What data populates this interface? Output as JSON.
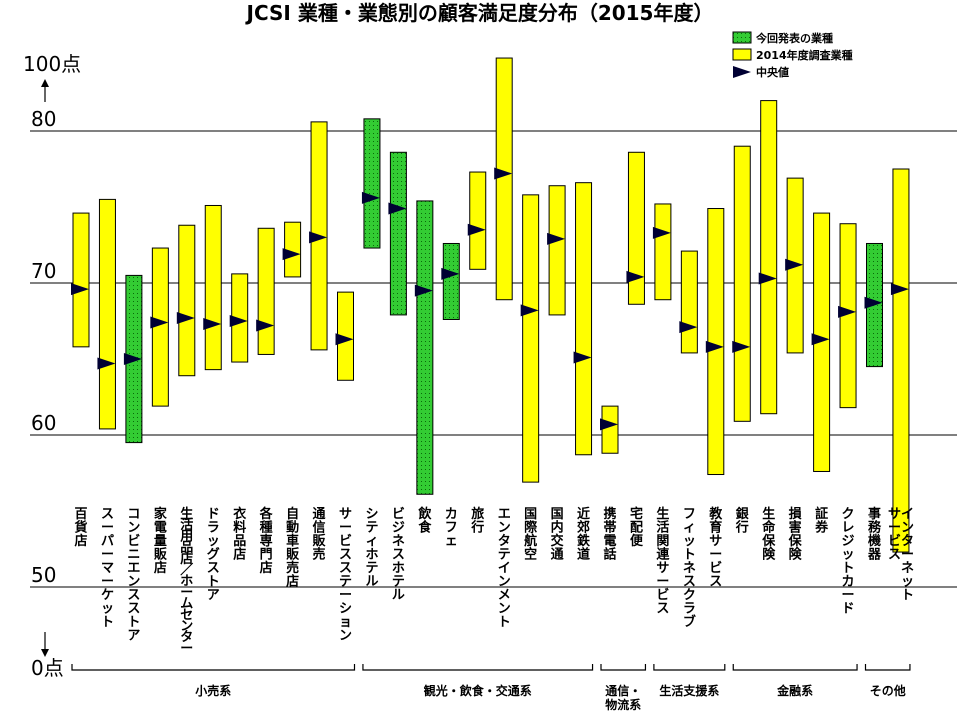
{
  "chart_data": {
    "type": "range-bar",
    "title": "JCSI 業種・業態別の顧客満足度分布（2015年度）",
    "y_top_label": "100点",
    "y_bottom_label": "0点",
    "y_ticks": [
      {
        "value": 80,
        "label": "80"
      },
      {
        "value": 70,
        "label": "70"
      },
      {
        "value": 60,
        "label": "60"
      },
      {
        "value": 50,
        "label": "50"
      }
    ],
    "ylim": [
      50,
      85
    ],
    "grid": true,
    "legend_position": "top-right",
    "legend": [
      {
        "label": "今回発表の業種",
        "kind": "new",
        "color": "#33cc33"
      },
      {
        "label": "2014年度調査業種",
        "kind": "prior",
        "color": "#ffff00"
      },
      {
        "label": "中央値",
        "kind": "median",
        "color": "#000033"
      }
    ],
    "series": [
      {
        "name": "百貨店",
        "lines": [
          "百貨店"
        ],
        "min": 65.8,
        "max": 74.6,
        "median": 69.6,
        "kind": "prior"
      },
      {
        "name": "スーパーマーケット",
        "lines": [
          "スーパーマーケット"
        ],
        "min": 60.4,
        "max": 75.5,
        "median": 64.7,
        "kind": "prior"
      },
      {
        "name": "コンビニエンスストア",
        "lines": [
          "コンビニエンスストア"
        ],
        "min": 59.5,
        "max": 70.5,
        "median": 65.0,
        "kind": "new"
      },
      {
        "name": "家電量販店",
        "lines": [
          "家電量販店"
        ],
        "min": 61.9,
        "max": 72.3,
        "median": 67.4,
        "kind": "prior"
      },
      {
        "name": "生活用品店／ホームセンター",
        "lines": [
          "生活用品店／ホームセンター"
        ],
        "min": 63.9,
        "max": 73.8,
        "median": 67.7,
        "kind": "prior",
        "small": true
      },
      {
        "name": "ドラッグストア",
        "lines": [
          "ドラッグストア"
        ],
        "min": 64.3,
        "max": 75.1,
        "median": 67.3,
        "kind": "prior"
      },
      {
        "name": "衣料品店",
        "lines": [
          "衣料品店"
        ],
        "min": 64.8,
        "max": 70.6,
        "median": 67.5,
        "kind": "prior"
      },
      {
        "name": "各種専門店",
        "lines": [
          "各種専門店"
        ],
        "min": 65.3,
        "max": 73.6,
        "median": 67.2,
        "kind": "prior"
      },
      {
        "name": "自動車販売店",
        "lines": [
          "自動車販売店"
        ],
        "min": 70.4,
        "max": 74.0,
        "median": 71.9,
        "kind": "prior"
      },
      {
        "name": "通信販売",
        "lines": [
          "通信販売"
        ],
        "min": 65.6,
        "max": 80.6,
        "median": 73.0,
        "kind": "prior"
      },
      {
        "name": "サービスステーション",
        "lines": [
          "サービスステーション"
        ],
        "min": 63.6,
        "max": 69.4,
        "median": 66.3,
        "kind": "prior"
      },
      {
        "name": "シティホテル",
        "lines": [
          "シティホテル"
        ],
        "min": 72.3,
        "max": 80.8,
        "median": 75.6,
        "kind": "new"
      },
      {
        "name": "ビジネスホテル",
        "lines": [
          "ビジネスホテル"
        ],
        "min": 67.9,
        "max": 78.6,
        "median": 74.9,
        "kind": "new"
      },
      {
        "name": "飲食",
        "lines": [
          "飲食"
        ],
        "min": 56.1,
        "max": 75.4,
        "median": 69.5,
        "kind": "new"
      },
      {
        "name": "カフェ",
        "lines": [
          "カフェ"
        ],
        "min": 67.6,
        "max": 72.6,
        "median": 70.6,
        "kind": "new"
      },
      {
        "name": "旅行",
        "lines": [
          "旅行"
        ],
        "min": 70.9,
        "max": 77.3,
        "median": 73.5,
        "kind": "prior"
      },
      {
        "name": "エンタテインメント",
        "lines": [
          "エンタテインメント"
        ],
        "min": 68.9,
        "max": 84.8,
        "median": 77.2,
        "kind": "prior"
      },
      {
        "name": "国際航空",
        "lines": [
          "国際航空"
        ],
        "min": 56.9,
        "max": 75.8,
        "median": 68.2,
        "kind": "prior"
      },
      {
        "name": "国内交通",
        "lines": [
          "国内交通"
        ],
        "min": 67.9,
        "max": 76.4,
        "median": 72.9,
        "kind": "prior"
      },
      {
        "name": "近郊鉄道",
        "lines": [
          "近郊鉄道"
        ],
        "min": 58.7,
        "max": 76.6,
        "median": 65.1,
        "kind": "prior"
      },
      {
        "name": "携帯電話",
        "lines": [
          "携帯電話"
        ],
        "min": 58.8,
        "max": 61.9,
        "median": 60.7,
        "kind": "prior"
      },
      {
        "name": "宅配便",
        "lines": [
          "宅配便"
        ],
        "min": 68.6,
        "max": 78.6,
        "median": 70.4,
        "kind": "prior"
      },
      {
        "name": "生活関連サービス",
        "lines": [
          "生活関連サービス"
        ],
        "min": 68.9,
        "max": 75.2,
        "median": 73.3,
        "kind": "prior"
      },
      {
        "name": "フィットネスクラブ",
        "lines": [
          "フィットネスクラブ"
        ],
        "min": 65.4,
        "max": 72.1,
        "median": 67.1,
        "kind": "prior"
      },
      {
        "name": "教育サービス",
        "lines": [
          "教育サービス"
        ],
        "min": 57.4,
        "max": 74.9,
        "median": 65.8,
        "kind": "prior"
      },
      {
        "name": "銀行",
        "lines": [
          "銀行"
        ],
        "min": 60.9,
        "max": 79.0,
        "median": 65.8,
        "kind": "prior"
      },
      {
        "name": "生命保険",
        "lines": [
          "生命保険"
        ],
        "min": 61.4,
        "max": 82.0,
        "median": 70.3,
        "kind": "prior"
      },
      {
        "name": "損害保険",
        "lines": [
          "損害保険"
        ],
        "min": 65.4,
        "max": 76.9,
        "median": 71.2,
        "kind": "prior"
      },
      {
        "name": "証券",
        "lines": [
          "証券"
        ],
        "min": 57.6,
        "max": 74.6,
        "median": 66.3,
        "kind": "prior"
      },
      {
        "name": "クレジットカード",
        "lines": [
          "クレジットカード"
        ],
        "min": 61.8,
        "max": 73.9,
        "median": 68.1,
        "kind": "prior"
      },
      {
        "name": "事務機器",
        "lines": [
          "事務機器"
        ],
        "min": 64.5,
        "max": 72.6,
        "median": 68.7,
        "kind": "new"
      },
      {
        "name": "インターネットサービス",
        "lines": [
          "インターネット",
          "サービス"
        ],
        "min": 52.3,
        "max": 77.5,
        "median": 69.6,
        "kind": "prior"
      }
    ],
    "groups": [
      {
        "lines": [
          "小売系"
        ],
        "from": 0,
        "to": 10
      },
      {
        "lines": [
          "観光・飲食・交通系"
        ],
        "from": 11,
        "to": 19
      },
      {
        "lines": [
          "通信・",
          "物流系"
        ],
        "from": 20,
        "to": 21
      },
      {
        "lines": [
          "生活支援系"
        ],
        "from": 22,
        "to": 24
      },
      {
        "lines": [
          "金融系"
        ],
        "from": 25,
        "to": 29
      },
      {
        "lines": [
          "その他"
        ],
        "from": 30,
        "to": 31
      }
    ]
  }
}
